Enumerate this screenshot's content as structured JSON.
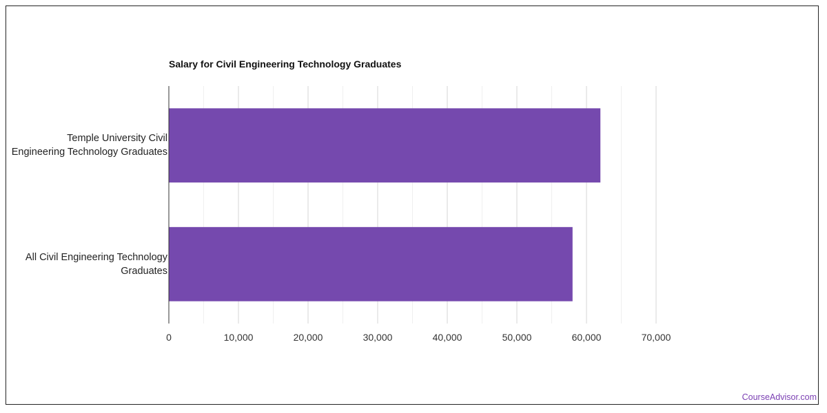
{
  "chart_data": {
    "type": "bar",
    "orientation": "horizontal",
    "title": "Salary for Civil Engineering Technology Graduates",
    "categories": [
      "Temple University Civil Engineering Technology Graduates",
      "All Civil Engineering Technology Graduates"
    ],
    "category_lines": [
      [
        "Temple University Civil",
        "Engineering Technology Graduates"
      ],
      [
        "All Civil Engineering Technology",
        "Graduates"
      ]
    ],
    "values": [
      62000,
      58000
    ],
    "xlabel": "",
    "ylabel": "",
    "xlim": [
      0,
      70000
    ],
    "x_ticks": [
      0,
      10000,
      20000,
      30000,
      40000,
      50000,
      60000,
      70000
    ],
    "x_tick_labels": [
      "0",
      "10,000",
      "20,000",
      "30,000",
      "40,000",
      "50,000",
      "60,000",
      "70,000"
    ],
    "grid": true,
    "bar_color": "#7549ae"
  },
  "credit": {
    "label": "CourseAdvisor.com",
    "color": "#7b3fb3"
  }
}
